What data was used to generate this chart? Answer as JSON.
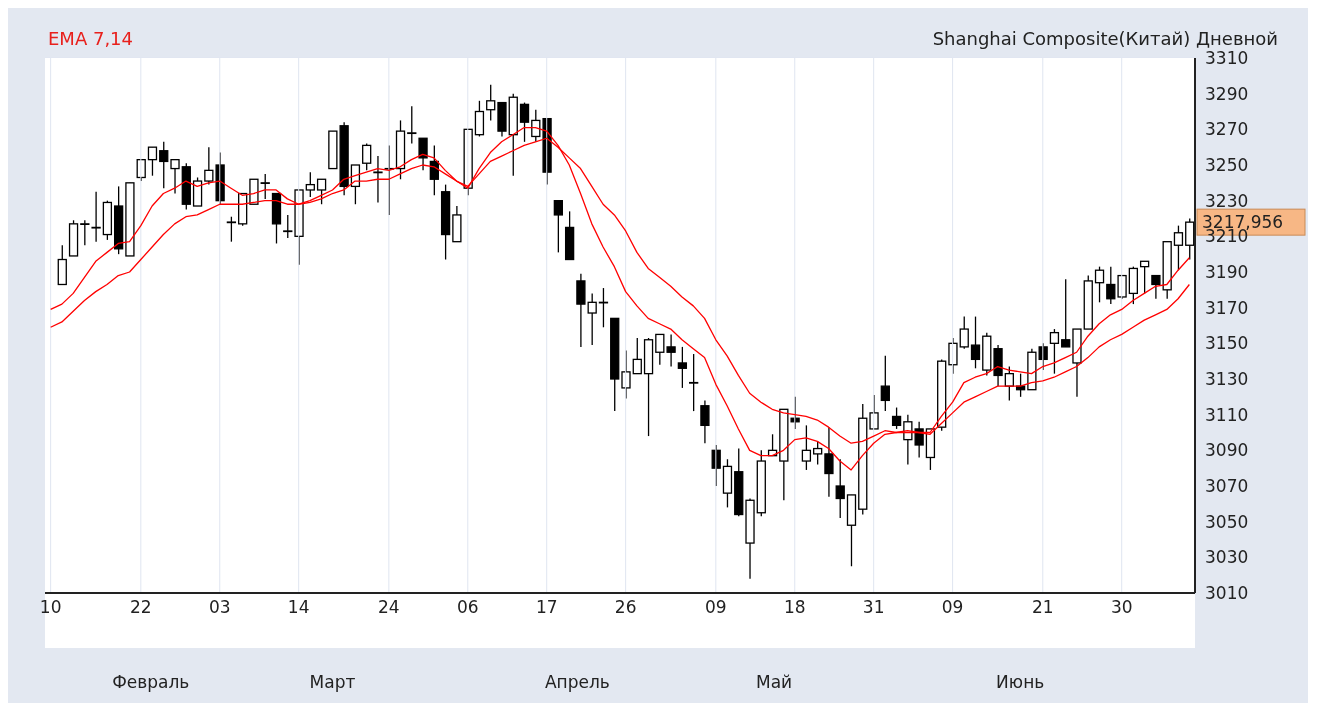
{
  "chart_data": {
    "type": "candlestick",
    "title": "Shanghai Composite(Китай) Дневной",
    "subtitle": "EMA 7,14",
    "categories": [
      "10",
      null,
      null,
      null,
      null,
      null,
      null,
      null,
      "22",
      null,
      null,
      null,
      null,
      null,
      null,
      "03",
      null,
      null,
      null,
      null,
      null,
      null,
      "14",
      null,
      null,
      null,
      null,
      null,
      null,
      null,
      "24",
      null,
      null,
      null,
      null,
      null,
      null,
      "06",
      null,
      null,
      null,
      null,
      null,
      null,
      "17",
      null,
      null,
      null,
      null,
      null,
      null,
      "26",
      null,
      null,
      null,
      null,
      null,
      null,
      null,
      "09",
      null,
      null,
      null,
      null,
      null,
      null,
      "18",
      null,
      null,
      null,
      null,
      null,
      null,
      "31",
      null,
      null,
      null,
      null,
      null,
      null,
      "09",
      null,
      null,
      null,
      null,
      null,
      null,
      null,
      "21",
      null,
      null,
      null,
      null,
      null,
      null,
      "30",
      null,
      null,
      null,
      null,
      null,
      null
    ],
    "ohlc": [
      null,
      [
        3183,
        3205,
        3183,
        3197
      ],
      [
        3199,
        3219,
        3199,
        3217
      ],
      [
        3217,
        3219,
        3205,
        3217
      ],
      [
        3215,
        3235,
        3207,
        3215
      ],
      [
        3211,
        3230,
        3208,
        3229
      ],
      [
        3227,
        3238,
        3200,
        3203
      ],
      [
        3199,
        3240,
        3199,
        3240
      ],
      [
        3243,
        3253,
        3241,
        3253
      ],
      [
        3253,
        3260,
        3244,
        3260
      ],
      [
        3258,
        3263,
        3237,
        3252
      ],
      [
        3248,
        3253,
        3234,
        3253
      ],
      [
        3249,
        3251,
        3225,
        3228
      ],
      [
        3227,
        3243,
        3227,
        3241
      ],
      [
        3241,
        3260,
        3239,
        3247
      ],
      [
        3250,
        3257,
        3228,
        3230
      ],
      [
        3218,
        3221,
        3207,
        3218
      ],
      [
        3217,
        3234,
        3216,
        3234
      ],
      [
        3228,
        3242,
        3228,
        3242
      ],
      [
        3240,
        3245,
        3231,
        3240
      ],
      [
        3234,
        3234,
        3206,
        3217
      ],
      [
        3213,
        3222,
        3209,
        3213
      ],
      [
        3210,
        3236,
        3194,
        3236
      ],
      [
        3236,
        3246,
        3232,
        3239
      ],
      [
        3236,
        3242,
        3228,
        3242
      ],
      [
        3248,
        3269,
        3248,
        3269
      ],
      [
        3272,
        3274,
        3233,
        3238
      ],
      [
        3238,
        3250,
        3228,
        3250
      ],
      [
        3251,
        3262,
        3247,
        3261
      ],
      [
        3246,
        3255,
        3229,
        3246
      ],
      [
        3248,
        3261,
        3222,
        3248
      ],
      [
        3248,
        3275,
        3242,
        3269
      ],
      [
        3268,
        3283,
        3262,
        3268
      ],
      [
        3265,
        3265,
        3247,
        3254
      ],
      [
        3252,
        3261,
        3233,
        3242
      ],
      [
        3235,
        3239,
        3197,
        3211
      ],
      [
        3207,
        3227,
        3207,
        3222
      ],
      [
        3237,
        3270,
        3233,
        3270
      ],
      [
        3267,
        3286,
        3266,
        3280
      ],
      [
        3281,
        3295,
        3275,
        3286
      ],
      [
        3285,
        3285,
        3266,
        3269
      ],
      [
        3267,
        3290,
        3244,
        3288
      ],
      [
        3284,
        3285,
        3263,
        3274
      ],
      [
        3266,
        3281,
        3263,
        3275
      ],
      [
        3276,
        3276,
        3239,
        3246
      ],
      [
        3230,
        3230,
        3201,
        3222
      ],
      [
        3215,
        3224,
        3197,
        3197
      ],
      [
        3185,
        3189,
        3148,
        3172
      ],
      [
        3167,
        3178,
        3149,
        3173
      ],
      [
        3173,
        3181,
        3159,
        3173
      ],
      [
        3164,
        3164,
        3112,
        3130
      ],
      [
        3125,
        3146,
        3119,
        3134
      ],
      [
        3133,
        3153,
        3133,
        3141
      ],
      [
        3133,
        3153,
        3098,
        3152
      ],
      [
        3145,
        3155,
        3138,
        3155
      ],
      [
        3148,
        3155,
        3137,
        3145
      ],
      [
        3139,
        3148,
        3125,
        3136
      ],
      [
        3128,
        3144,
        3112,
        3128
      ],
      [
        3115,
        3118,
        3094,
        3104
      ],
      [
        3090,
        3093,
        3070,
        3080
      ],
      [
        3066,
        3085,
        3058,
        3081
      ],
      [
        3078,
        3091,
        3053,
        3054
      ],
      [
        3038,
        3063,
        3018,
        3062
      ],
      [
        3055,
        3090,
        3053,
        3084
      ],
      [
        3087,
        3099,
        3087,
        3090
      ],
      [
        3084,
        3113,
        3062,
        3113
      ],
      [
        3108,
        3120,
        3102,
        3106
      ],
      [
        3084,
        3104,
        3079,
        3090
      ],
      [
        3088,
        3095,
        3082,
        3091
      ],
      [
        3088,
        3103,
        3064,
        3077
      ],
      [
        3070,
        3085,
        3052,
        3063
      ],
      [
        3048,
        3065,
        3025,
        3065
      ],
      [
        3057,
        3116,
        3054,
        3108
      ],
      [
        3102,
        3121,
        3102,
        3111
      ],
      [
        3126,
        3143,
        3112,
        3118
      ],
      [
        3109,
        3114,
        3102,
        3104
      ],
      [
        3096,
        3110,
        3082,
        3106
      ],
      [
        3102,
        3106,
        3086,
        3093
      ],
      [
        3086,
        3102,
        3079,
        3102
      ],
      [
        3103,
        3141,
        3101,
        3140
      ],
      [
        3138,
        3153,
        3133,
        3150
      ],
      [
        3148,
        3165,
        3147,
        3158
      ],
      [
        3149,
        3165,
        3136,
        3141
      ],
      [
        3135,
        3156,
        3132,
        3154
      ],
      [
        3147,
        3149,
        3126,
        3132
      ],
      [
        3126,
        3137,
        3118,
        3133
      ],
      [
        3126,
        3133,
        3120,
        3124
      ],
      [
        3124,
        3147,
        3124,
        3145
      ],
      [
        3148,
        3150,
        3135,
        3141
      ],
      [
        3150,
        3158,
        3133,
        3156
      ],
      [
        3152,
        3186,
        3148,
        3148
      ],
      [
        3139,
        3158,
        3120,
        3158
      ],
      [
        3158,
        3188,
        3158,
        3185
      ],
      [
        3184,
        3193,
        3173,
        3191
      ],
      [
        3183,
        3193,
        3172,
        3175
      ],
      [
        3176,
        3188,
        3175,
        3188
      ],
      [
        3178,
        3193,
        3172,
        3192
      ],
      [
        3193,
        3196,
        3178,
        3196
      ],
      [
        3188,
        3188,
        3175,
        3183
      ],
      [
        3180,
        3207,
        3175,
        3207
      ],
      [
        3205,
        3216,
        3191,
        3212
      ],
      [
        3205,
        3220,
        3197,
        3217.956
      ]
    ],
    "series": [
      {
        "type": "line",
        "color": "#ff0000",
        "values": [
          3169,
          3172,
          3178,
          3187,
          3196,
          3201,
          3206,
          3207,
          3216,
          3227,
          3234,
          3237,
          3241,
          3238,
          3240,
          3241,
          3237,
          3233,
          3234,
          3236,
          3236,
          3231,
          3228,
          3230,
          3233,
          3236,
          3242,
          3244,
          3246,
          3248,
          3247,
          3249,
          3253,
          3256,
          3254,
          3247,
          3241,
          3237,
          3248,
          3257,
          3263,
          3267,
          3271,
          3271,
          3269,
          3261,
          3250,
          3234,
          3217,
          3204,
          3193,
          3179,
          3171,
          3164,
          3161,
          3158,
          3152,
          3147,
          3142,
          3127,
          3115,
          3102,
          3090,
          3087,
          3087,
          3090,
          3096,
          3097,
          3095,
          3091,
          3084,
          3079,
          3087,
          3094,
          3099,
          3100,
          3101,
          3100,
          3100,
          3109,
          3117,
          3128,
          3131,
          3133,
          3137,
          3135,
          3134,
          3133,
          3137,
          3139,
          3142,
          3145,
          3154,
          3161,
          3166,
          3169,
          3174,
          3178,
          3182,
          3183,
          3191,
          3198
        ]
      },
      {
        "type": "line",
        "color": "#ff0000",
        "values": [
          3159,
          3162,
          3168,
          3174,
          3179,
          3183,
          3188,
          3190,
          3197,
          3204,
          3211,
          3217,
          3221,
          3222,
          3225,
          3228,
          3228,
          3228,
          3229,
          3230,
          3230,
          3228,
          3228,
          3229,
          3231,
          3234,
          3236,
          3241,
          3241,
          3242,
          3242,
          3245,
          3248,
          3250,
          3249,
          3245,
          3241,
          3238,
          3245,
          3252,
          3255,
          3258,
          3261,
          3263,
          3265,
          3260,
          3254,
          3248,
          3238,
          3228,
          3222,
          3213,
          3201,
          3192,
          3187,
          3182,
          3176,
          3171,
          3164,
          3152,
          3143,
          3132,
          3122,
          3117,
          3113,
          3111,
          3110,
          3109,
          3107,
          3103,
          3098,
          3094,
          3095,
          3098,
          3101,
          3100,
          3100,
          3100,
          3099,
          3105,
          3111,
          3117,
          3120,
          3123,
          3126,
          3126,
          3126,
          3128,
          3129,
          3131,
          3134,
          3137,
          3142,
          3148,
          3152,
          3155,
          3159,
          3163,
          3166,
          3169,
          3175,
          3183
        ]
      }
    ],
    "ylim": [
      3010,
      3310
    ],
    "yticks": [
      3010,
      3030,
      3050,
      3070,
      3090,
      3110,
      3130,
      3150,
      3170,
      3190,
      3210,
      3230,
      3250,
      3270,
      3290,
      3310
    ],
    "grid": true,
    "annotations": [
      "3217,956",
      "Февраль",
      "Март",
      "Апрель",
      "Май",
      "Июнь"
    ]
  }
}
